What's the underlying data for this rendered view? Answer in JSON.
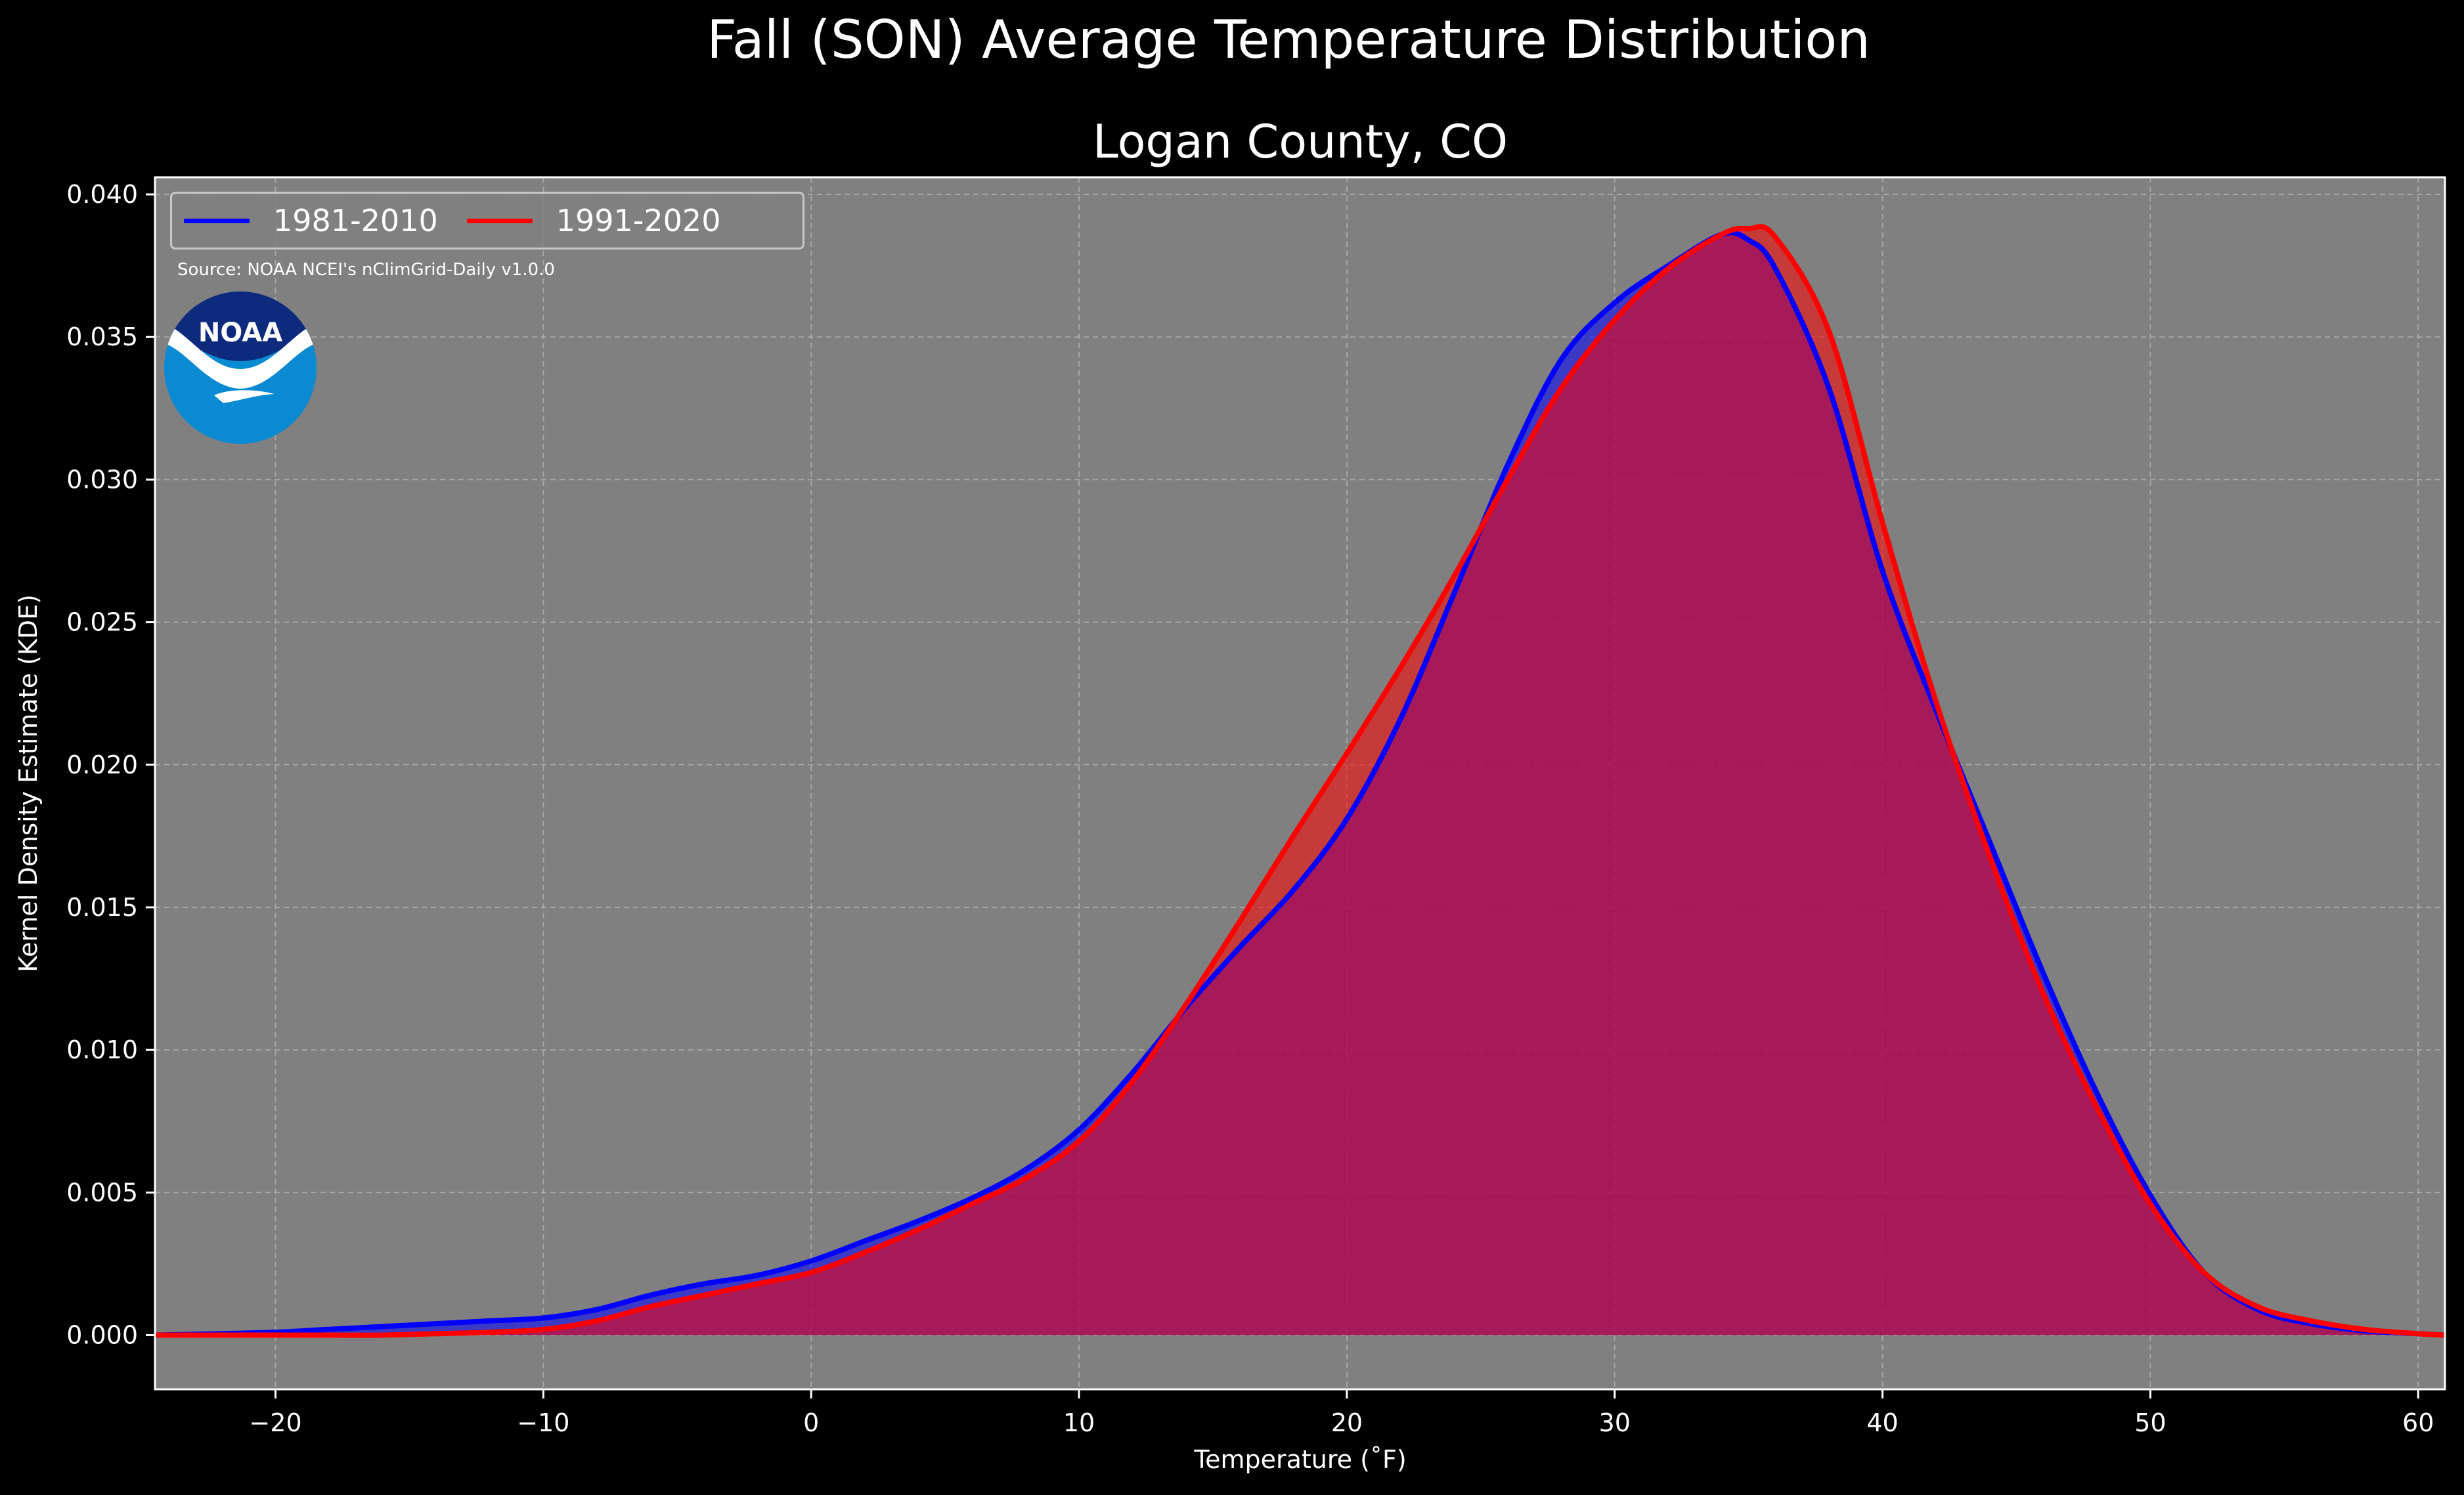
{
  "chart_data": {
    "type": "area",
    "title": "Fall (SON) Average Temperature Distribution",
    "subtitle": "Logan County, CO",
    "xlabel": "Temperature ($^\\circ$F)",
    "xlabel_display": "Temperature (˚F)",
    "ylabel": "Kernel Density Estimate (KDE)",
    "xlim": [
      -24.5,
      61
    ],
    "ylim": [
      -0.0019,
      0.0406
    ],
    "xticks": [
      -20,
      -10,
      0,
      10,
      20,
      30,
      40,
      50,
      60
    ],
    "xtick_labels": [
      "−20",
      "−10",
      "0",
      "10",
      "20",
      "30",
      "40",
      "50",
      "60"
    ],
    "yticks": [
      0,
      0.005,
      0.01,
      0.015,
      0.02,
      0.025,
      0.03,
      0.035,
      0.04
    ],
    "ytick_labels": [
      "0.000",
      "0.005",
      "0.010",
      "0.015",
      "0.020",
      "0.025",
      "0.030",
      "0.035",
      "0.040"
    ],
    "grid": true,
    "legend_position": "top-left",
    "annotation": "Source: NOAA NCEI's nClimGrid-Daily v1.0.0",
    "logo_text": "NOAA",
    "series": [
      {
        "name": "1981-2010",
        "color": "#0000ff",
        "x": [
          -24.5,
          -22,
          -20,
          -18,
          -16,
          -14,
          -12,
          -10,
          -8,
          -6,
          -4,
          -2,
          0,
          2,
          4,
          6,
          8,
          10,
          12,
          14,
          16,
          18,
          20,
          22,
          24,
          26,
          28,
          30,
          32,
          34,
          35,
          36,
          38,
          40,
          42,
          44,
          46,
          48,
          50,
          52,
          54,
          56,
          58,
          60,
          61
        ],
        "y": [
          0.0,
          5e-05,
          0.0001,
          0.0002,
          0.0003,
          0.0004,
          0.0005,
          0.0006,
          0.0009,
          0.0014,
          0.0018,
          0.0021,
          0.0026,
          0.0033,
          0.004,
          0.0048,
          0.0058,
          0.0072,
          0.0092,
          0.0115,
          0.0136,
          0.0156,
          0.0181,
          0.0216,
          0.026,
          0.0305,
          0.0342,
          0.0362,
          0.0375,
          0.0386,
          0.0384,
          0.0374,
          0.0332,
          0.0268,
          0.0219,
          0.0173,
          0.0127,
          0.0085,
          0.0049,
          0.0022,
          0.0009,
          0.0004,
          0.00015,
          5e-05,
          0.0
        ]
      },
      {
        "name": "1991-2020",
        "color": "#ff0000",
        "x": [
          -24.5,
          -22,
          -20,
          -18,
          -16,
          -14,
          -12,
          -10,
          -8,
          -6,
          -4,
          -2,
          0,
          2,
          4,
          6,
          8,
          10,
          12,
          14,
          16,
          18,
          20,
          22,
          24,
          26,
          28,
          30,
          32,
          34,
          35,
          36,
          38,
          40,
          42,
          44,
          46,
          48,
          50,
          52,
          54,
          56,
          58,
          60,
          61
        ],
        "y": [
          0.0,
          0.0,
          0.0,
          0.0,
          0.0,
          5e-05,
          0.0001,
          0.0002,
          0.0005,
          0.001,
          0.0014,
          0.0018,
          0.0022,
          0.0029,
          0.0037,
          0.0046,
          0.0055,
          0.0068,
          0.0089,
          0.0116,
          0.0145,
          0.0175,
          0.0204,
          0.0234,
          0.0266,
          0.03,
          0.0332,
          0.0356,
          0.0374,
          0.0386,
          0.0388,
          0.0385,
          0.0352,
          0.0285,
          0.0222,
          0.0168,
          0.012,
          0.008,
          0.0046,
          0.0022,
          0.001,
          0.0005,
          0.0002,
          5e-05,
          0.0
        ]
      }
    ]
  }
}
